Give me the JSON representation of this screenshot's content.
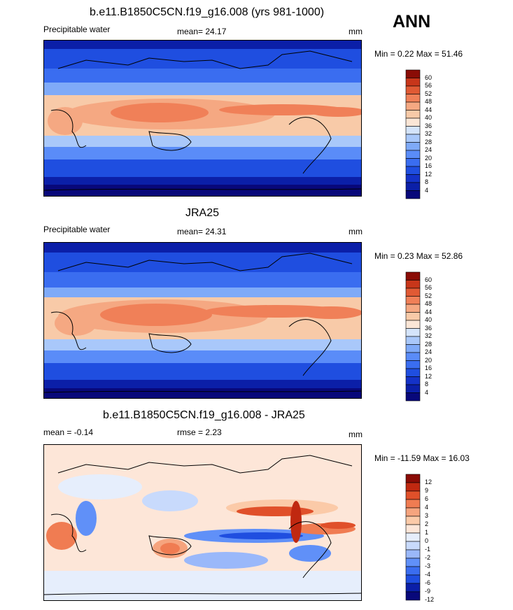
{
  "season": "ANN",
  "panels": [
    {
      "title": "b.e11.B1850C5CN.f19_g16.008 (yrs 981-1000)",
      "left_label": "Precipitable water",
      "mid_label": "mean=  24.17",
      "units": "mm",
      "minmax": "Min =   0.22 Max =  51.46",
      "colorbar_labels": [
        "60",
        "56",
        "52",
        "48",
        "44",
        "40",
        "36",
        "32",
        "28",
        "24",
        "20",
        "16",
        "12",
        "8",
        "4"
      ]
    },
    {
      "title": "JRA25",
      "left_label": "Precipitable water",
      "mid_label": "mean=  24.31",
      "units": "mm",
      "minmax": "Min =   0.23 Max =  52.86",
      "colorbar_labels": [
        "60",
        "56",
        "52",
        "48",
        "44",
        "40",
        "36",
        "32",
        "28",
        "24",
        "20",
        "16",
        "12",
        "8",
        "4"
      ]
    },
    {
      "title": "b.e11.B1850C5CN.f19_g16.008 - JRA25",
      "left_label": "mean =  -0.14",
      "mid_label": "rmse =   2.23",
      "units": "mm",
      "minmax": "Min = -11.59 Max =  16.03",
      "colorbar_labels": [
        "12",
        "9",
        "6",
        "4",
        "3",
        "2",
        "1",
        "0",
        "-1",
        "-2",
        "-3",
        "-4",
        "-6",
        "-9",
        "-12"
      ]
    }
  ],
  "colors": {
    "abs_scale": [
      "#08087a",
      "#0b1fa8",
      "#1432c8",
      "#1f4ee0",
      "#3a6df0",
      "#5a8cf8",
      "#7faaf8",
      "#a9c8fa",
      "#d4e4fb",
      "#fbe6d6",
      "#f8caa8",
      "#f5a882",
      "#f08058",
      "#e05a34",
      "#c8361a",
      "#8a0c06"
    ],
    "diff_scale": [
      "#08087a",
      "#0b1fa8",
      "#1f4ee0",
      "#3a6df0",
      "#6090f8",
      "#9ab8fa",
      "#c8dafc",
      "#e6eefc",
      "#fde6d8",
      "#fbcaa8",
      "#f6a47e",
      "#f07c52",
      "#e0502a",
      "#c02810",
      "#8a0c06"
    ]
  }
}
